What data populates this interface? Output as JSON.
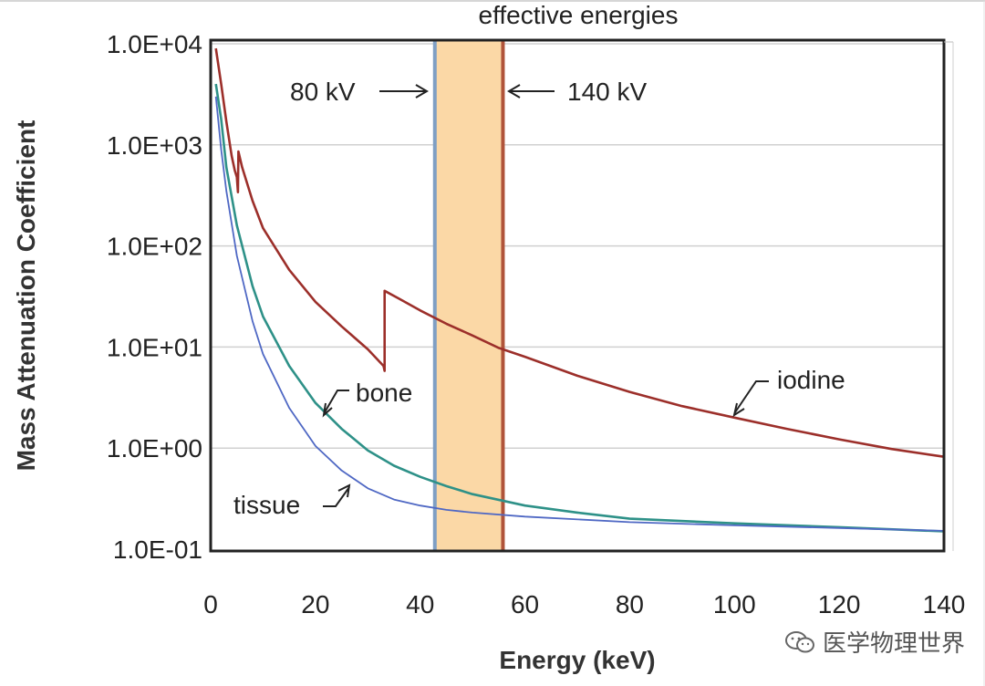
{
  "chart_data": {
    "type": "line",
    "scale": "log-y",
    "title": "effective energies",
    "xlabel": "Energy (keV)",
    "ylabel": "Mass Attenuation Coefficient",
    "xlim": [
      0,
      140
    ],
    "ylim": [
      0.1,
      10000
    ],
    "x_ticks": [
      "0",
      "20",
      "40",
      "60",
      "80",
      "100",
      "120",
      "140"
    ],
    "x_tick_values": [
      0,
      20,
      40,
      60,
      80,
      100,
      120,
      140
    ],
    "y_ticks": [
      "1.0E-01",
      "1.0E+00",
      "1.0E+01",
      "1.0E+02",
      "1.0E+03",
      "1.0E+04"
    ],
    "y_tick_values": [
      0.1,
      1,
      10,
      100,
      1000,
      10000
    ],
    "grid": "horizontal",
    "series": [
      {
        "name": "iodine",
        "label": "iodine",
        "color": "#9c2f2a",
        "points": [
          [
            1,
            9000
          ],
          [
            2,
            4000
          ],
          [
            3,
            1700
          ],
          [
            4,
            780
          ],
          [
            4.6,
            560
          ],
          [
            5,
            480
          ],
          [
            5.2,
            340
          ],
          [
            5.3,
            860
          ],
          [
            6,
            600
          ],
          [
            8,
            280
          ],
          [
            10,
            150
          ],
          [
            15,
            58
          ],
          [
            20,
            28
          ],
          [
            25,
            16
          ],
          [
            30,
            9.5
          ],
          [
            33,
            6.5
          ],
          [
            33.2,
            5.8
          ],
          [
            33.2,
            36
          ],
          [
            36,
            30
          ],
          [
            40,
            23
          ],
          [
            45,
            17
          ],
          [
            50,
            13
          ],
          [
            55,
            9.8
          ],
          [
            60,
            8
          ],
          [
            70,
            5.2
          ],
          [
            80,
            3.6
          ],
          [
            90,
            2.6
          ],
          [
            100,
            2
          ],
          [
            110,
            1.55
          ],
          [
            120,
            1.22
          ],
          [
            130,
            0.98
          ],
          [
            140,
            0.82
          ]
        ]
      },
      {
        "name": "bone",
        "label": "bone",
        "color": "#2e9188",
        "points": [
          [
            1,
            4000
          ],
          [
            2,
            1800
          ],
          [
            3,
            600
          ],
          [
            5,
            160
          ],
          [
            8,
            40
          ],
          [
            10,
            20
          ],
          [
            15,
            6.5
          ],
          [
            20,
            2.8
          ],
          [
            25,
            1.55
          ],
          [
            30,
            0.95
          ],
          [
            35,
            0.67
          ],
          [
            40,
            0.52
          ],
          [
            45,
            0.42
          ],
          [
            50,
            0.35
          ],
          [
            60,
            0.27
          ],
          [
            70,
            0.23
          ],
          [
            80,
            0.2
          ],
          [
            100,
            0.18
          ],
          [
            120,
            0.165
          ],
          [
            140,
            0.15
          ]
        ]
      },
      {
        "name": "tissue",
        "label": "tissue",
        "color": "#4f68c4",
        "points": [
          [
            1,
            3000
          ],
          [
            2,
            900
          ],
          [
            3,
            350
          ],
          [
            5,
            80
          ],
          [
            8,
            18
          ],
          [
            10,
            8.5
          ],
          [
            15,
            2.5
          ],
          [
            20,
            1.05
          ],
          [
            25,
            0.6
          ],
          [
            30,
            0.4
          ],
          [
            35,
            0.31
          ],
          [
            40,
            0.27
          ],
          [
            45,
            0.245
          ],
          [
            50,
            0.23
          ],
          [
            60,
            0.21
          ],
          [
            80,
            0.185
          ],
          [
            100,
            0.172
          ],
          [
            120,
            0.162
          ],
          [
            140,
            0.152
          ]
        ]
      }
    ],
    "effective_band": {
      "x_from": 42.8,
      "x_to": 55.8,
      "fill": "#fbd8a6"
    },
    "reference_lines": [
      {
        "x": 42.8,
        "color": "#7f9fc4",
        "label": "80 kV"
      },
      {
        "x": 55.8,
        "color": "#b0543a",
        "label": "140 kV"
      }
    ],
    "annotations": [
      {
        "text": "iodine",
        "series": "iodine",
        "x": 100
      },
      {
        "text": "bone",
        "series": "bone",
        "x": 22
      },
      {
        "text": "tissue",
        "series": "tissue",
        "x": 26
      }
    ]
  },
  "watermark": {
    "text": "医学物理世界",
    "icon": "wechat-icon"
  }
}
